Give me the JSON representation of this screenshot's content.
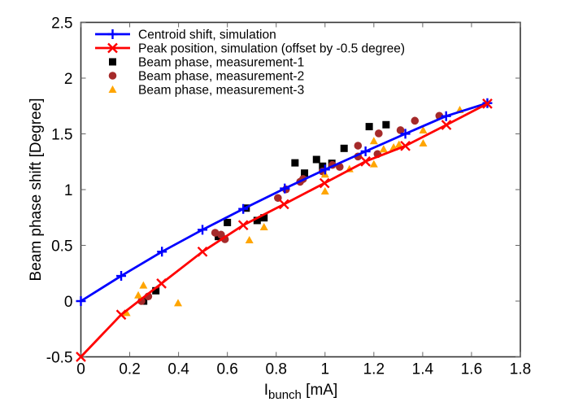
{
  "chart_data": {
    "type": "scatter",
    "title": "",
    "xlabel": "I_bunch [mA]",
    "xlabel_main": "I",
    "xlabel_sub": "bunch",
    "xlabel_unit": " [mA]",
    "ylabel": "Beam phase shift [Degree]",
    "xlim": [
      0,
      1.8
    ],
    "ylim": [
      -0.5,
      2.5
    ],
    "x_ticks": [
      0,
      0.2,
      0.4,
      0.6,
      0.8,
      1,
      1.2,
      1.4,
      1.6,
      1.8
    ],
    "x_tick_labels": [
      "0",
      "0.2",
      "0.4",
      "0.6",
      "0.8",
      "1",
      "1.2",
      "1.4",
      "1.6",
      "1.8"
    ],
    "y_ticks": [
      -0.5,
      0,
      0.5,
      1,
      1.5,
      2,
      2.5
    ],
    "y_tick_labels": [
      "-0.5",
      "0",
      "0.5",
      "1",
      "1.5",
      "2",
      "2.5"
    ],
    "grid": false,
    "legend_position": "upper left",
    "series": [
      {
        "name": "Centroid shift, simulation",
        "kind": "line+marker",
        "marker": "plus",
        "color": "#0000ff",
        "x": [
          0,
          0.165,
          0.332,
          0.498,
          0.665,
          0.835,
          1.0,
          1.166,
          1.329,
          1.496,
          1.665
        ],
        "y": [
          0,
          0.226,
          0.443,
          0.64,
          0.827,
          1.01,
          1.18,
          1.343,
          1.501,
          1.659,
          1.776
        ]
      },
      {
        "name": "Peak position, simulation (offset by -0.5 degree)",
        "kind": "line+marker",
        "marker": "x",
        "color": "#ff0000",
        "x": [
          0,
          0.165,
          0.33,
          0.498,
          0.665,
          0.832,
          0.998,
          1.166,
          1.329,
          1.497,
          1.665
        ],
        "y": [
          -0.5,
          -0.122,
          0.158,
          0.443,
          0.681,
          0.869,
          1.058,
          1.253,
          1.392,
          1.58,
          1.771
        ]
      },
      {
        "name": "Beam phase, measurement-1",
        "kind": "scatter",
        "marker": "square",
        "color": "#000000",
        "x": [
          0.257,
          0.307,
          0.563,
          0.6,
          0.677,
          0.722,
          0.75,
          0.877,
          0.916,
          0.965,
          0.99,
          1.028,
          1.078,
          1.181,
          1.25
        ],
        "y": [
          0.0,
          0.093,
          0.579,
          0.705,
          0.834,
          0.723,
          0.747,
          1.24,
          1.148,
          1.27,
          1.21,
          1.236,
          1.37,
          1.565,
          1.582
        ]
      },
      {
        "name": "Beam phase, measurement-2",
        "kind": "scatter",
        "marker": "circle",
        "color": "#a52a2a",
        "x": [
          0.248,
          0.276,
          0.55,
          0.574,
          0.59,
          0.807,
          0.84,
          0.898,
          0.91,
          0.99,
          1.03,
          1.06,
          1.135,
          1.135,
          1.215,
          1.22,
          1.309,
          1.368,
          1.468
        ],
        "y": [
          0.0,
          0.042,
          0.613,
          0.596,
          0.555,
          0.925,
          1.002,
          1.07,
          1.095,
          1.163,
          1.221,
          1.204,
          1.394,
          1.297,
          1.319,
          1.504,
          1.533,
          1.618,
          1.662
        ]
      },
      {
        "name": "Beam phase, measurement-3",
        "kind": "scatter",
        "marker": "triangle",
        "color": "#ffa500",
        "x": [
          0.187,
          0.235,
          0.256,
          0.398,
          0.69,
          0.75,
          1.0,
          1.0,
          1.1,
          1.2,
          1.2,
          1.24,
          1.281,
          1.303,
          1.402,
          1.402,
          1.552
        ],
        "y": [
          -0.105,
          0.053,
          0.141,
          -0.017,
          0.547,
          0.664,
          1.137,
          0.985,
          1.185,
          1.436,
          1.229,
          1.363,
          1.38,
          1.404,
          1.533,
          1.416,
          1.715
        ]
      }
    ]
  },
  "legend": {
    "items": [
      {
        "label": "Centroid shift, simulation"
      },
      {
        "label": "Peak position, simulation (offset by -0.5 degree)"
      },
      {
        "label": "Beam phase, measurement-1"
      },
      {
        "label": "Beam phase, measurement-2"
      },
      {
        "label": "Beam phase, measurement-3"
      }
    ]
  }
}
